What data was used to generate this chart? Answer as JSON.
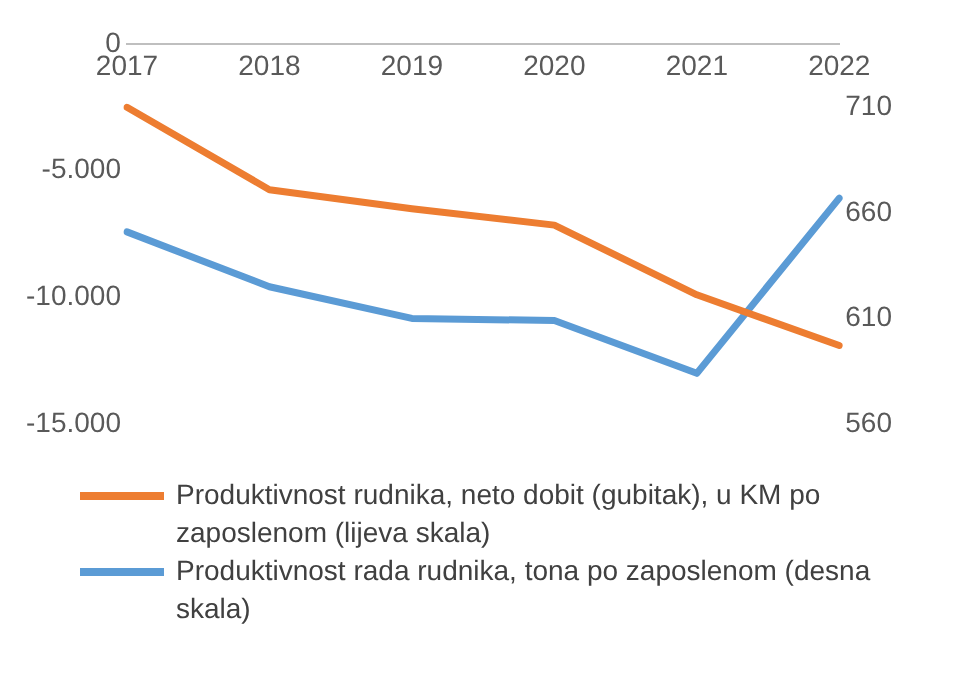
{
  "chart_data": {
    "type": "line",
    "categories": [
      "2017",
      "2018",
      "2019",
      "2020",
      "2021",
      "2022"
    ],
    "series": [
      {
        "name": "Produktivnost rudnika, neto dobit (gubitak), u KM po zaposlenom (lijeva skala)",
        "color": "#ed7d31",
        "values": [
          -2500,
          -5750,
          -6500,
          -7150,
          -9900,
          -11900
        ]
      },
      {
        "name": "Produktivnost rada rudnika, tona po zaposlenom (desna skala)",
        "color": "#5b9bd5",
        "axis": "y2",
        "values": [
          651,
          625,
          610,
          609,
          584,
          667
        ]
      }
    ],
    "ylim": [
      -15000,
      0
    ],
    "yticks": [
      {
        "value": -15000,
        "label": "-15.000"
      },
      {
        "value": -10000,
        "label": "-10.000"
      },
      {
        "value": -5000,
        "label": "-5.000"
      },
      0
    ],
    "y2lim": [
      560,
      740
    ],
    "y2ticks": [
      560,
      610,
      660,
      710
    ],
    "grid": false,
    "legend": "bottom",
    "marker": "none",
    "line_style": "solid"
  }
}
